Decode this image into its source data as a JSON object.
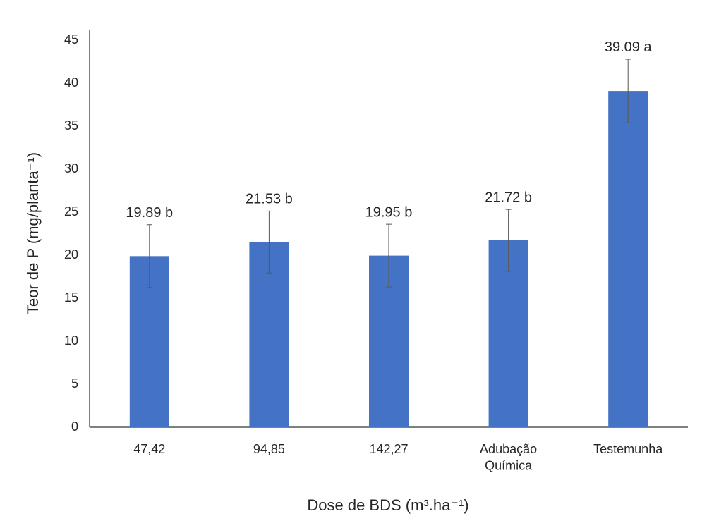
{
  "chart_data": {
    "type": "bar",
    "x_label": "Dose de BDS (m³.ha⁻¹)",
    "y_label": "Teor de P (mg/planta⁻¹)",
    "categories": [
      "47,42",
      "94,85",
      "142,27",
      "Adubação\nQuímica",
      "Testemunha"
    ],
    "values": [
      19.89,
      21.53,
      19.95,
      21.72,
      39.09
    ],
    "value_labels": [
      "19.89 b",
      "21.53 b",
      "19.95 b",
      "21.72 b",
      "39.09 a"
    ],
    "errors": [
      3.65,
      3.6,
      3.65,
      3.6,
      3.7
    ],
    "color": "#4472c4",
    "ylim": [
      0,
      45
    ],
    "yticks": [
      0,
      5,
      10,
      15,
      20,
      25,
      30,
      35,
      40,
      45
    ],
    "grid": false
  }
}
